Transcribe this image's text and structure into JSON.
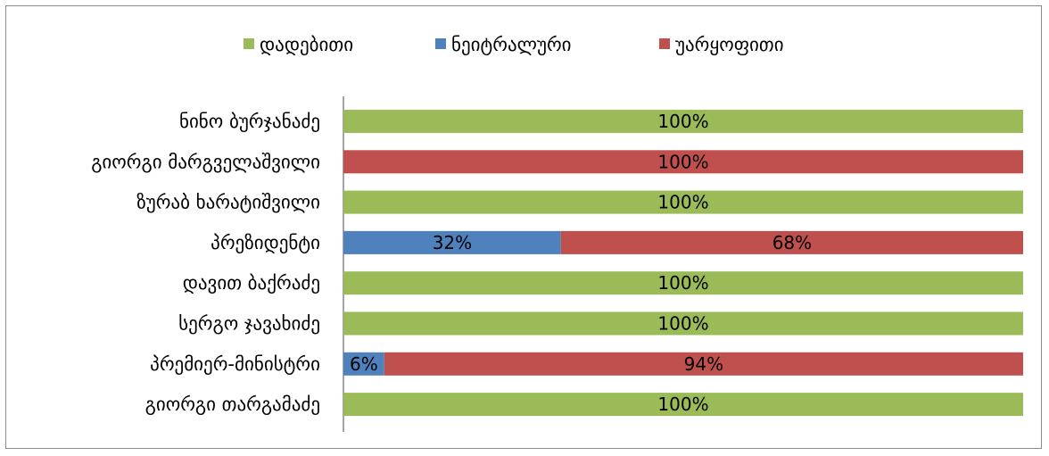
{
  "chart_data": {
    "type": "bar",
    "orientation": "horizontal",
    "stacked": true,
    "percent_stacked": true,
    "legend_position": "top",
    "grid": false,
    "title": "",
    "xlabel": "",
    "ylabel": "",
    "xlim": [
      0,
      100
    ],
    "categories": [
      "ნინო ბურჯანაძე",
      "გიორგი მარგველაშვილი",
      "ზურაბ ხარატიშვილი",
      "პრეზიდენტი",
      "დავით ბაქრაძე",
      "სერგო ჯავახიძე",
      "პრემიერ-მინისტრი",
      "გიორგი თარგამაძე"
    ],
    "series": [
      {
        "name": "დადებითი",
        "color": "#9bbb59",
        "values": [
          100,
          0,
          100,
          0,
          100,
          100,
          0,
          100
        ]
      },
      {
        "name": "ნეიტრალური",
        "color": "#4f81bd",
        "values": [
          0,
          0,
          0,
          32,
          0,
          0,
          6,
          0
        ]
      },
      {
        "name": "უარყოფითი",
        "color": "#c0504d",
        "values": [
          0,
          100,
          0,
          68,
          0,
          0,
          94,
          0
        ]
      }
    ],
    "data_labels": [
      [
        "100%",
        "",
        ""
      ],
      [
        "",
        "",
        "100%"
      ],
      [
        "100%",
        "",
        ""
      ],
      [
        "",
        "32%",
        "68%"
      ],
      [
        "100%",
        "",
        ""
      ],
      [
        "100%",
        "",
        ""
      ],
      [
        "",
        "6%",
        "94%"
      ],
      [
        "100%",
        "",
        ""
      ]
    ]
  }
}
